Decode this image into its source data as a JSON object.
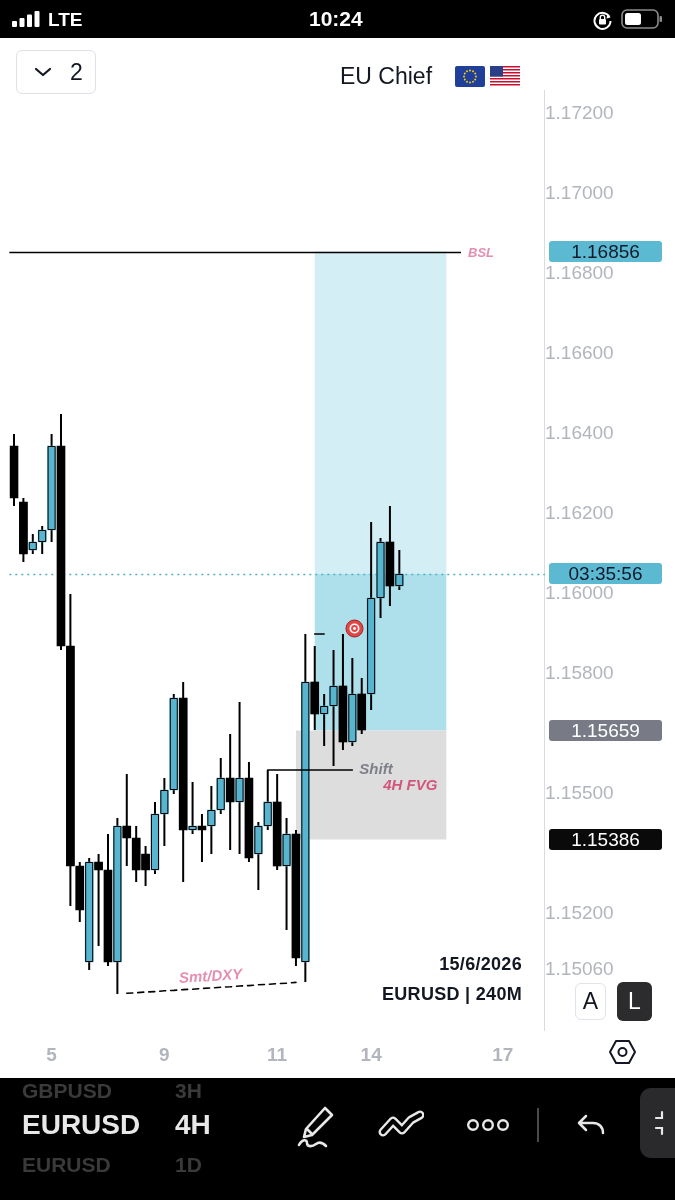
{
  "chart_data": {
    "type": "candlestick",
    "title": "EU Chief",
    "categories": [
      null,
      null,
      null,
      null,
      "5",
      null,
      null,
      null,
      null,
      null,
      null,
      null,
      null,
      null,
      null,
      null,
      "9",
      null,
      null,
      null,
      null,
      null,
      null,
      null,
      null,
      null,
      null,
      null,
      "11",
      null,
      null,
      null,
      null,
      null,
      null,
      null,
      null,
      null,
      "14",
      null,
      null,
      null,
      null,
      null,
      null,
      null,
      null,
      null,
      null,
      null,
      null,
      null,
      "17",
      null,
      null,
      null,
      null
    ],
    "ohlc": [
      [
        1.1637,
        1.164,
        1.1622,
        1.1624
      ],
      [
        1.1623,
        1.1624,
        1.1608,
        1.161
      ],
      [
        1.1611,
        1.1615,
        1.161,
        1.1613
      ],
      [
        1.1613,
        1.1617,
        1.161,
        1.1616
      ],
      [
        1.1616,
        1.164,
        1.1613,
        1.1637
      ],
      [
        1.1637,
        1.1645,
        1.1586,
        1.1587
      ],
      [
        1.1587,
        1.16,
        1.1522,
        1.1532
      ],
      [
        1.1532,
        1.1533,
        1.1518,
        1.1521
      ],
      [
        1.1508,
        1.1534,
        1.1506,
        1.1533
      ],
      [
        1.1533,
        1.1535,
        1.1512,
        1.1531
      ],
      [
        1.1531,
        1.154,
        1.1507,
        1.1508
      ],
      [
        1.1508,
        1.1544,
        1.15,
        1.1542
      ],
      [
        1.1542,
        1.1555,
        1.1532,
        1.1539
      ],
      [
        1.1539,
        1.1542,
        1.1528,
        1.1531
      ],
      [
        1.1535,
        1.1537,
        1.1527,
        1.1531
      ],
      [
        1.1531,
        1.1548,
        1.153,
        1.1545
      ],
      [
        1.1545,
        1.1554,
        1.1537,
        1.1551
      ],
      [
        1.1551,
        1.1575,
        1.155,
        1.1574
      ],
      [
        1.1574,
        1.1578,
        1.1528,
        1.1541
      ],
      [
        1.1541,
        1.1553,
        1.154,
        1.1542
      ],
      [
        1.1542,
        1.1545,
        1.1533,
        1.1541
      ],
      [
        1.1542,
        1.1552,
        1.1535,
        1.1546
      ],
      [
        1.1546,
        1.1559,
        1.1545,
        1.1554
      ],
      [
        1.1554,
        1.1565,
        1.1536,
        1.1548
      ],
      [
        1.1548,
        1.1573,
        1.1535,
        1.1554
      ],
      [
        1.1554,
        1.1558,
        1.1533,
        1.1534
      ],
      [
        1.1535,
        1.1543,
        1.1526,
        1.1542
      ],
      [
        1.1542,
        1.1556,
        1.1541,
        1.1548
      ],
      [
        1.1548,
        1.1555,
        1.1531,
        1.1532
      ],
      [
        1.1532,
        1.1544,
        1.1516,
        1.154
      ],
      [
        1.154,
        1.1541,
        1.1507,
        1.1509
      ],
      [
        1.1508,
        1.159,
        1.1503,
        1.1578
      ],
      [
        1.1578,
        1.1587,
        1.1566,
        1.157
      ],
      [
        1.157,
        1.1575,
        1.1562,
        1.1572
      ],
      [
        1.1572,
        1.1586,
        1.1557,
        1.1577
      ],
      [
        1.1577,
        1.159,
        1.1561,
        1.1563
      ],
      [
        1.1563,
        1.1584,
        1.1562,
        1.1575
      ],
      [
        1.1575,
        1.1579,
        1.1565,
        1.1566
      ],
      [
        1.1575,
        1.1618,
        1.1571,
        1.1599
      ],
      [
        1.1599,
        1.1614,
        1.1594,
        1.1613
      ],
      [
        1.1613,
        1.1622,
        1.1597,
        1.1602
      ],
      [
        1.1602,
        1.1611,
        1.1601,
        1.1605
      ],
      null,
      null,
      null,
      null,
      null,
      null,
      null,
      null,
      null,
      null,
      null,
      null,
      null,
      null,
      null
    ],
    "colors": [
      "#000000",
      "#000000",
      "#58b5cf",
      "#58b5cf",
      "#58b5cf",
      "#000000",
      "#000000",
      "#000000",
      "#58b5cf",
      "#000000",
      "#000000",
      "#58b5cf",
      "#000000",
      "#000000",
      "#000000",
      "#58b5cf",
      "#58b5cf",
      "#58b5cf",
      "#000000",
      "#58b5cf",
      "#000000",
      "#58b5cf",
      "#58b5cf",
      "#000000",
      "#58b5cf",
      "#000000",
      "#58b5cf",
      "#58b5cf",
      "#000000",
      "#58b5cf",
      "#000000",
      "#58b5cf",
      "#000000",
      "#58b5cf",
      "#58b5cf",
      "#000000",
      "#58b5cf",
      "#000000",
      "#58b5cf",
      "#58b5cf",
      "#000000",
      "#58b5cf",
      null,
      null,
      null,
      null,
      null,
      null,
      null,
      null,
      null,
      null,
      null,
      null,
      null,
      null,
      null
    ],
    "series": [
      {
        "type": "line",
        "name": "Smt/DXY",
        "color": "#000000",
        "line_style": "dashed",
        "values": [
          null,
          null,
          null,
          null,
          null,
          null,
          null,
          null,
          null,
          null,
          null,
          null,
          1.15002,
          1.15003,
          1.15005,
          1.15006,
          1.15008,
          1.15009,
          1.15011,
          1.15012,
          1.15014,
          1.15015,
          1.15017,
          1.15018,
          1.1502,
          1.15021,
          1.15023,
          1.15024,
          1.15026,
          1.15027,
          1.15029,
          null,
          null,
          null,
          null,
          null,
          null,
          null,
          null,
          null,
          null,
          null,
          null,
          null,
          null,
          null,
          null,
          null,
          null,
          null,
          null,
          null,
          null,
          null,
          null,
          null,
          null
        ]
      },
      {
        "type": "line",
        "name": "Shift",
        "color": "#000000",
        "values": [
          null,
          null,
          null,
          null,
          null,
          null,
          null,
          null,
          null,
          null,
          null,
          null,
          null,
          null,
          null,
          null,
          null,
          null,
          null,
          null,
          null,
          null,
          null,
          null,
          null,
          null,
          null,
          1.1556,
          1.1556,
          1.1556,
          1.1556,
          1.1556,
          1.1556,
          1.1556,
          1.1556,
          1.1556,
          1.1556,
          null,
          null,
          null,
          null,
          null,
          null,
          null,
          null,
          null,
          null,
          null,
          null,
          null,
          null,
          null,
          null,
          null,
          null,
          null,
          null
        ]
      },
      {
        "type": "line",
        "color": "#000000",
        "values": [
          null,
          null,
          null,
          null,
          null,
          null,
          null,
          null,
          null,
          null,
          null,
          null,
          null,
          null,
          null,
          null,
          null,
          null,
          null,
          null,
          null,
          null,
          null,
          null,
          null,
          null,
          null,
          null,
          null,
          null,
          null,
          null,
          1.159,
          1.159,
          null,
          null,
          null,
          null,
          null,
          null,
          null,
          null,
          null,
          null,
          null,
          null,
          null,
          null,
          null,
          null,
          null,
          null,
          null,
          null,
          null,
          null,
          null
        ]
      }
    ],
    "ylim": [
      1.1491,
      1.1726
    ],
    "yticks": [
      {
        "value": 1.172,
        "label": "1.17200"
      },
      {
        "value": 1.17,
        "label": "1.17000"
      },
      {
        "value": 1.168,
        "label": "1.16800"
      },
      {
        "value": 1.166,
        "label": "1.16600"
      },
      {
        "value": 1.164,
        "label": "1.16400"
      },
      {
        "value": 1.162,
        "label": "1.16200"
      },
      {
        "value": 1.16,
        "label": "1.16000"
      },
      {
        "value": 1.158,
        "label": "1.15800"
      },
      {
        "value": 1.155,
        "label": "1.15500"
      },
      {
        "value": 1.152,
        "label": "1.15200"
      },
      {
        "value": 1.1506,
        "label": "1.15060"
      }
    ],
    "bands": [
      {
        "axis": "y",
        "from": 1.1605,
        "to": 1.16856,
        "color": "#d3eef4"
      },
      {
        "axis": "y",
        "from": 1.15659,
        "to": 1.1605,
        "color": "#aee0eb"
      },
      {
        "axis": "y",
        "from": 1.15386,
        "to": 1.15659,
        "color": "#dddddd",
        "label": "4H FVG"
      }
    ],
    "ref_lines": [
      {
        "axis": "y",
        "value": 1.16856,
        "label": "BSL",
        "color": "#000000"
      },
      {
        "axis": "y",
        "value": 1.1605,
        "color": "#4eb3c8",
        "line_style": "dotted"
      }
    ],
    "annotations": [
      "LTE",
      "10:24",
      "2",
      "15/6/2026",
      "EURUSD | 240M",
      "A",
      "L",
      "GBPUSD",
      "3H",
      "EURUSD",
      "4H",
      "EURUSD",
      "1D",
      "1.16856",
      "03:35:56",
      "1.15659",
      "1.15386"
    ]
  }
}
